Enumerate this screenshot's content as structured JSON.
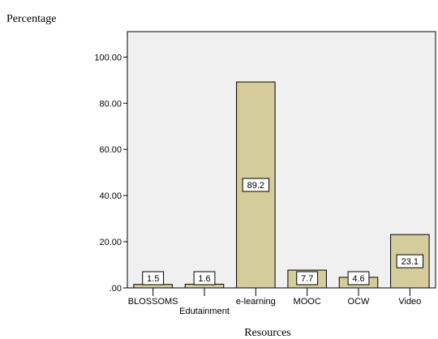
{
  "chart_data": {
    "type": "bar",
    "title": "",
    "ylabel": "Percentage",
    "xlabel": "Resources",
    "categories": [
      "BLOSSOMS",
      "Edutainment",
      "e-learning",
      "MOOC",
      "OCW",
      "Video"
    ],
    "values": [
      1.5,
      1.6,
      89.2,
      7.7,
      4.6,
      23.1
    ],
    "data_labels": [
      "1.5",
      "1.6",
      "89.2",
      "7.7",
      "4.6",
      "23.1"
    ],
    "yticks": [
      {
        "value": 0,
        "label": ".00"
      },
      {
        "value": 20,
        "label": "20.00"
      },
      {
        "value": 40,
        "label": "40.00"
      },
      {
        "value": 60,
        "label": "60.00"
      },
      {
        "value": 80,
        "label": "80.00"
      },
      {
        "value": 100,
        "label": "100.00"
      }
    ],
    "ylim": [
      0,
      111
    ],
    "grid": false,
    "legend": "none",
    "colors": {
      "plot_background": "#f0f0f0",
      "bar_fill": "#d4cc9a",
      "bar_stroke": "#000000",
      "page_background": "#ffffff"
    }
  }
}
